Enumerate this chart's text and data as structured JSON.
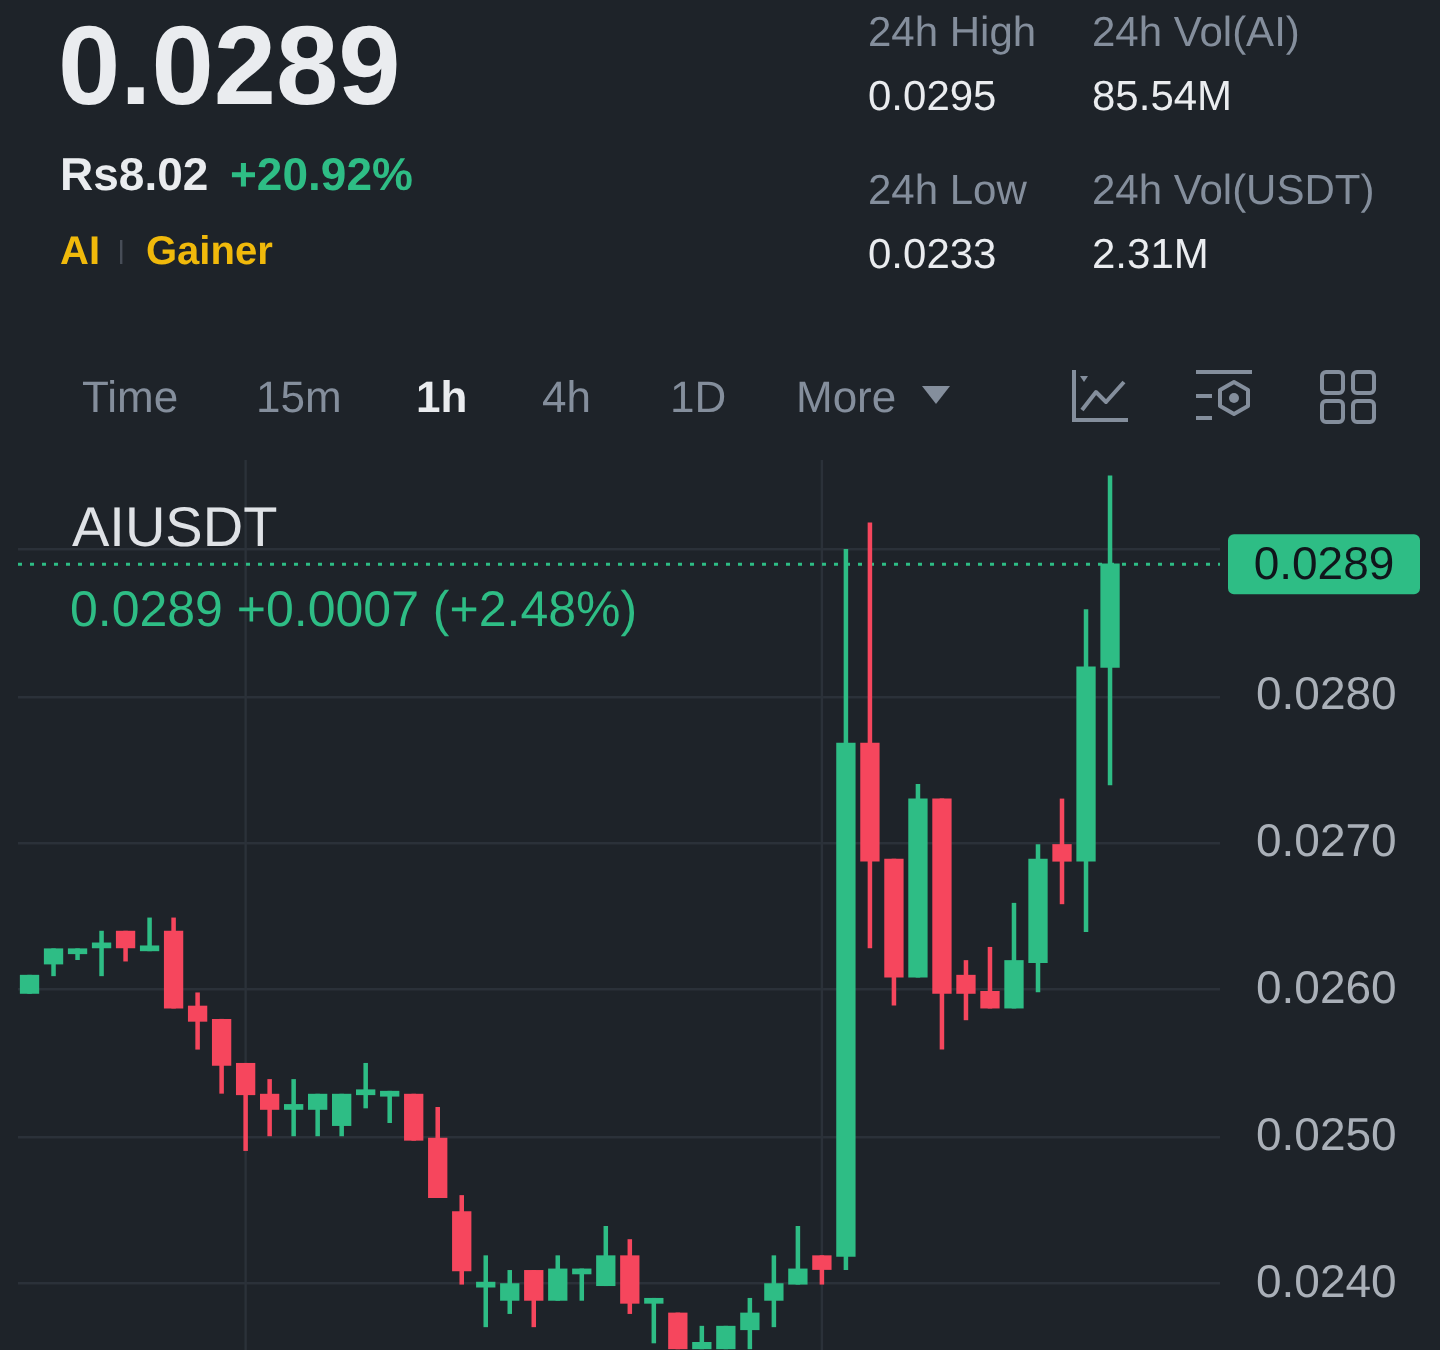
{
  "chart_data": {
    "type": "candlestick",
    "title": "AIUSDT",
    "subtitle": "0.0289 +0.0007 (+2.48%)",
    "annotations": [
      "0.0289",
      "Rs8.02",
      "+20.92%",
      "AI",
      "Gainer",
      "24h High",
      "0.0295",
      "24h Vol(AI)",
      "85.54M",
      "24h Low",
      "0.0233",
      "24h Vol(USDT)",
      "2.31M",
      "Time",
      "15m",
      "1h",
      "4h",
      "1D",
      "More"
    ],
    "categories": [
      null,
      null,
      null,
      null,
      null,
      null,
      null,
      null,
      null,
      null,
      null,
      null,
      null,
      null,
      null,
      null,
      null,
      null,
      null,
      null,
      null,
      null,
      null,
      null,
      null,
      null,
      null,
      null,
      null,
      null,
      null,
      null,
      null,
      null,
      null,
      null,
      null,
      null,
      null,
      null,
      null,
      null,
      null,
      null,
      null,
      null
    ],
    "ohlc": [
      [
        0.02598,
        0.0261,
        0.02598,
        0.0261
      ],
      [
        0.02618,
        0.02628,
        0.0261,
        0.02628
      ],
      [
        0.02625,
        0.02628,
        0.02621,
        0.02628
      ],
      [
        0.02629,
        0.0264,
        0.0261,
        0.02632
      ],
      [
        0.0264,
        0.0264,
        0.0262,
        0.02629
      ],
      [
        0.02627,
        0.02649,
        0.02627,
        0.0263
      ],
      [
        0.0264,
        0.02649,
        0.02588,
        0.02588
      ],
      [
        0.02589,
        0.02598,
        0.0256,
        0.02579
      ],
      [
        0.0258,
        0.0258,
        0.0253,
        0.02549
      ],
      [
        0.0255,
        0.0255,
        0.02491,
        0.02529
      ],
      [
        0.02529,
        0.02539,
        0.02501,
        0.02519
      ],
      [
        0.02519,
        0.02539,
        0.02501,
        0.02522
      ],
      [
        0.02519,
        0.02529,
        0.02501,
        0.02529
      ],
      [
        0.02508,
        0.02529,
        0.02501,
        0.02529
      ],
      [
        0.02529,
        0.0255,
        0.0252,
        0.02532
      ],
      [
        0.02528,
        0.02531,
        0.0251,
        0.02531
      ],
      [
        0.02529,
        0.02529,
        0.02498,
        0.02498
      ],
      [
        0.02499,
        0.0252,
        0.02459,
        0.02459
      ],
      [
        0.02449,
        0.0246,
        0.024,
        0.02409
      ],
      [
        0.02398,
        0.02419,
        0.02371,
        0.02401
      ],
      [
        0.02389,
        0.02409,
        0.0238,
        0.024
      ],
      [
        0.02409,
        0.02409,
        0.02371,
        0.02389
      ],
      [
        0.02389,
        0.02419,
        0.02389,
        0.0241
      ],
      [
        0.02407,
        0.0241,
        0.02389,
        0.0241
      ],
      [
        0.02399,
        0.02439,
        0.02399,
        0.02419
      ],
      [
        0.02419,
        0.0243,
        0.0238,
        0.02387
      ],
      [
        0.02387,
        0.0239,
        0.0236,
        0.0239
      ],
      [
        0.0238,
        0.0238,
        0.02356,
        0.02356
      ],
      [
        0.02356,
        0.02371,
        0.02356,
        0.0236
      ],
      [
        0.02356,
        0.02371,
        0.02356,
        0.02371
      ],
      [
        0.02369,
        0.0239,
        0.02356,
        0.0238
      ],
      [
        0.02389,
        0.02419,
        0.02371,
        0.024
      ],
      [
        0.024,
        0.02439,
        0.024,
        0.0241
      ],
      [
        0.02419,
        0.02419,
        0.024,
        0.0241
      ],
      [
        0.02419,
        0.029,
        0.0241,
        0.02768
      ],
      [
        0.02768,
        0.02918,
        0.02629,
        0.02688
      ],
      [
        0.02689,
        0.02689,
        0.0259,
        0.02609
      ],
      [
        0.02609,
        0.0274,
        0.02609,
        0.0273
      ],
      [
        0.0273,
        0.0273,
        0.0256,
        0.02598
      ],
      [
        0.0261,
        0.0262,
        0.0258,
        0.02598
      ],
      [
        0.02599,
        0.02629,
        0.02588,
        0.02588
      ],
      [
        0.02588,
        0.02659,
        0.02588,
        0.0262
      ],
      [
        0.02619,
        0.02699,
        0.02599,
        0.02689
      ],
      [
        0.02699,
        0.0273,
        0.02659,
        0.02688
      ],
      [
        0.02688,
        0.02859,
        0.0264,
        0.0282
      ],
      [
        0.0282,
        0.0295,
        0.0274,
        0.0289
      ]
    ],
    "colors": [
      "#2ebd85",
      "#2ebd85",
      "#2ebd85",
      "#2ebd85",
      "#f6465d",
      "#2ebd85",
      "#f6465d",
      "#f6465d",
      "#f6465d",
      "#f6465d",
      "#f6465d",
      "#2ebd85",
      "#2ebd85",
      "#2ebd85",
      "#2ebd85",
      "#2ebd85",
      "#f6465d",
      "#f6465d",
      "#f6465d",
      "#2ebd85",
      "#2ebd85",
      "#f6465d",
      "#2ebd85",
      "#2ebd85",
      "#2ebd85",
      "#f6465d",
      "#2ebd85",
      "#f6465d",
      "#2ebd85",
      "#2ebd85",
      "#2ebd85",
      "#2ebd85",
      "#2ebd85",
      "#f6465d",
      "#2ebd85",
      "#f6465d",
      "#f6465d",
      "#2ebd85",
      "#f6465d",
      "#f6465d",
      "#f6465d",
      "#2ebd85",
      "#2ebd85",
      "#f6465d",
      "#2ebd85",
      "#2ebd85"
    ],
    "ylim": [
      0.02355,
      0.02961
    ],
    "yticks": [
      {
        "value": 0.024,
        "label": "0.0240"
      },
      {
        "value": 0.025,
        "label": "0.0250"
      },
      {
        "value": 0.026,
        "label": "0.0260"
      },
      {
        "value": 0.027,
        "label": "0.0270"
      },
      {
        "value": 0.028,
        "label": "0.0280"
      },
      {
        "value": 0.029,
        "label": null
      }
    ],
    "ref_lines": [
      {
        "axis": "y",
        "value": 0.0289,
        "label": "0.0289",
        "color": "#2ebd85",
        "line_style": "dotted"
      }
    ],
    "grid": true,
    "tick_labels": "y"
  }
}
